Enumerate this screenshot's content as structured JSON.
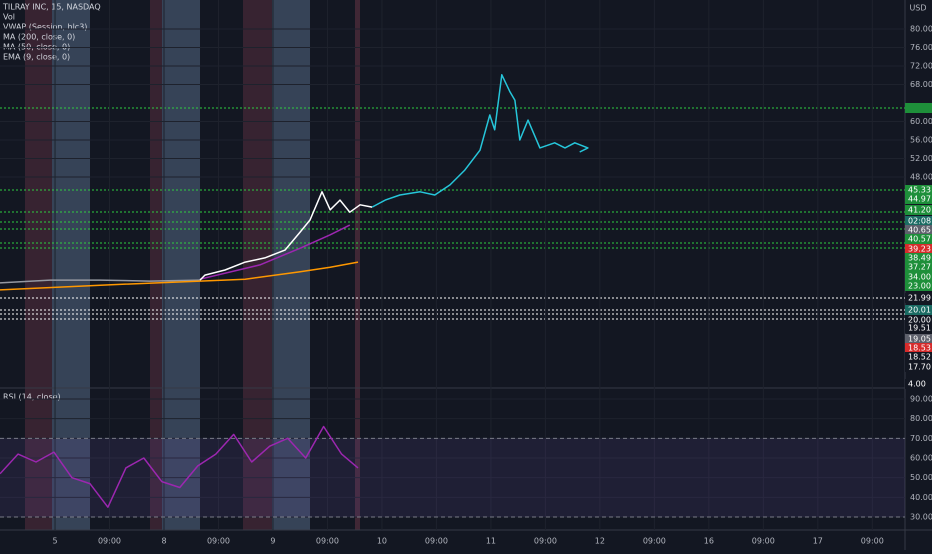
{
  "legend": [
    "TILRAY INC, 15, NASDAQ",
    "Vol",
    "VWAP (Session, hlc3)",
    "MA (200, close, 0)",
    "MA (50, close, 0)",
    "EMA (9, close, 0)"
  ],
  "currency": "USD",
  "price_labels": [
    {
      "label": "45.33",
      "color": "#1e8f3a"
    },
    {
      "label": "44.97",
      "color": "#1e8f3a"
    },
    {
      "label": "41.20",
      "color": "#1e8f3a"
    },
    {
      "label": "02:08",
      "color": "#1a6b63"
    },
    {
      "label": "40.65",
      "color": "#5d606b"
    },
    {
      "label": "40.57",
      "color": "#1e8f3a"
    },
    {
      "label": "39.23",
      "color": "#d62b2b"
    },
    {
      "label": "38.49",
      "color": "#1e8f3a"
    },
    {
      "label": "37.27",
      "color": "#1e8f3a"
    },
    {
      "label": "34.00",
      "color": "#1e8f3a"
    },
    {
      "label": "23.00",
      "color": "#1e8f3a"
    },
    {
      "label": "21.99",
      "color": "#131722"
    },
    {
      "label": "20.01",
      "color": "#1a6b63"
    },
    {
      "label": "20.00",
      "color": "#131722"
    },
    {
      "label": "19.51",
      "color": "#131722"
    },
    {
      "label": "19.05",
      "color": "#5d606b"
    },
    {
      "label": "18.53",
      "color": "#d62b2b"
    },
    {
      "label": "18.52",
      "color": "#131722"
    },
    {
      "label": "17.70",
      "color": "#131722"
    },
    {
      "label": "4.00",
      "color": "#131722"
    }
  ],
  "chart_data": [
    {
      "type": "line",
      "ylim": [
        2.38,
        86.27
      ],
      "xlim": [
        -1.01,
        15.6
      ],
      "yticks": [
        {
          "value": 80,
          "label": "80.00"
        },
        {
          "value": 76,
          "label": "76.00"
        },
        {
          "value": 72,
          "label": "72.00"
        },
        {
          "value": 68,
          "label": "68.00"
        },
        {
          "value": 60,
          "label": "60.00"
        },
        {
          "value": 56,
          "label": "56.00"
        },
        {
          "value": 52,
          "label": "52.00"
        },
        {
          "value": 48,
          "label": "48.00"
        }
      ],
      "xticks": [
        {
          "value": 0,
          "label": "5"
        },
        {
          "value": 1,
          "label": "09:00"
        },
        {
          "value": 2,
          "label": "8"
        },
        {
          "value": 3,
          "label": "09:00"
        },
        {
          "value": 4,
          "label": "9"
        },
        {
          "value": 5,
          "label": "09:00"
        },
        {
          "value": 6,
          "label": "10"
        },
        {
          "value": 7,
          "label": "09:00"
        },
        {
          "value": 8,
          "label": "11"
        },
        {
          "value": 9,
          "label": "09:00"
        },
        {
          "value": 10,
          "label": "12"
        },
        {
          "value": 11,
          "label": "09:00"
        },
        {
          "value": 12,
          "label": "16"
        },
        {
          "value": 13,
          "label": "09:00"
        },
        {
          "value": 14,
          "label": "17"
        },
        {
          "value": 15,
          "label": "09:00"
        }
      ],
      "series": [
        {
          "color": "#9598a1",
          "x": [
            -1.01,
            -0.09,
            0.83,
            1.74,
            2.66
          ],
          "values": [
            25.1,
            25.7,
            25.7,
            25.5,
            25.7
          ]
        },
        {
          "color": "#ff9800",
          "x": [
            -1.01,
            0.83,
            2.66,
            3.49,
            4.5,
            5.05,
            5.56
          ],
          "values": [
            23.6,
            24.6,
            25.5,
            25.9,
            27.5,
            28.5,
            29.6
          ]
        },
        {
          "color": "#9c27b0",
          "x": [
            2.66,
            3.76,
            4.5,
            5.05,
            5.41
          ],
          "values": [
            25.9,
            29.0,
            32.6,
            35.5,
            37.6
          ]
        },
        {
          "color": "#ffffff",
          "x": [
            2.66,
            2.75,
            3.12,
            3.49,
            3.85,
            4.22,
            4.5,
            4.68,
            4.9,
            5.05,
            5.23,
            5.41,
            5.6,
            5.82
          ],
          "values": [
            25.7,
            26.8,
            27.9,
            29.6,
            30.5,
            32.2,
            36.1,
            38.7,
            44.8,
            40.9,
            43.0,
            40.4,
            42.0,
            41.5
          ]
        },
        {
          "color": "#26c6da",
          "x": [
            5.82,
            6.06,
            6.33,
            6.7,
            6.97,
            7.25,
            7.52,
            7.8,
            7.98,
            8.07,
            8.2,
            8.35,
            8.44,
            8.53,
            8.68,
            8.9,
            9.17,
            9.36,
            9.54,
            9.78,
            9.63
          ],
          "values": [
            41.5,
            43.0,
            44.1,
            44.8,
            44.1,
            46.3,
            49.5,
            53.8,
            61.4,
            58.2,
            70.1,
            66.4,
            64.6,
            56.0,
            60.3,
            54.3,
            55.4,
            54.3,
            55.4,
            54.3,
            53.4
          ]
        }
      ]
    },
    {
      "type": "line",
      "title": "RSI (14, close)",
      "ylim": [
        23.4,
        95.6
      ],
      "xlim": [
        -1.01,
        15.6
      ],
      "yticks": [
        {
          "value": 90,
          "label": "90.00"
        },
        {
          "value": 80,
          "label": "80.00"
        },
        {
          "value": 70,
          "label": "70.00"
        },
        {
          "value": 60,
          "label": "60.00"
        },
        {
          "value": 50,
          "label": "50.00"
        },
        {
          "value": 40,
          "label": "40.00"
        },
        {
          "value": 30,
          "label": "30.00"
        }
      ],
      "band": [
        30,
        70
      ],
      "series": [
        {
          "color": "#9c27b0",
          "x": [
            -1.01,
            -0.68,
            -0.35,
            -0.02,
            0.31,
            0.64,
            0.97,
            1.3,
            1.63,
            1.96,
            2.29,
            2.62,
            2.95,
            3.28,
            3.61,
            3.94,
            4.27,
            4.6,
            4.93,
            5.26,
            5.56
          ],
          "values": [
            52,
            62,
            58,
            63,
            50,
            47,
            35,
            55,
            60,
            48,
            45,
            56,
            62,
            72,
            58,
            66,
            70,
            60,
            76,
            62,
            55
          ]
        }
      ]
    }
  ]
}
